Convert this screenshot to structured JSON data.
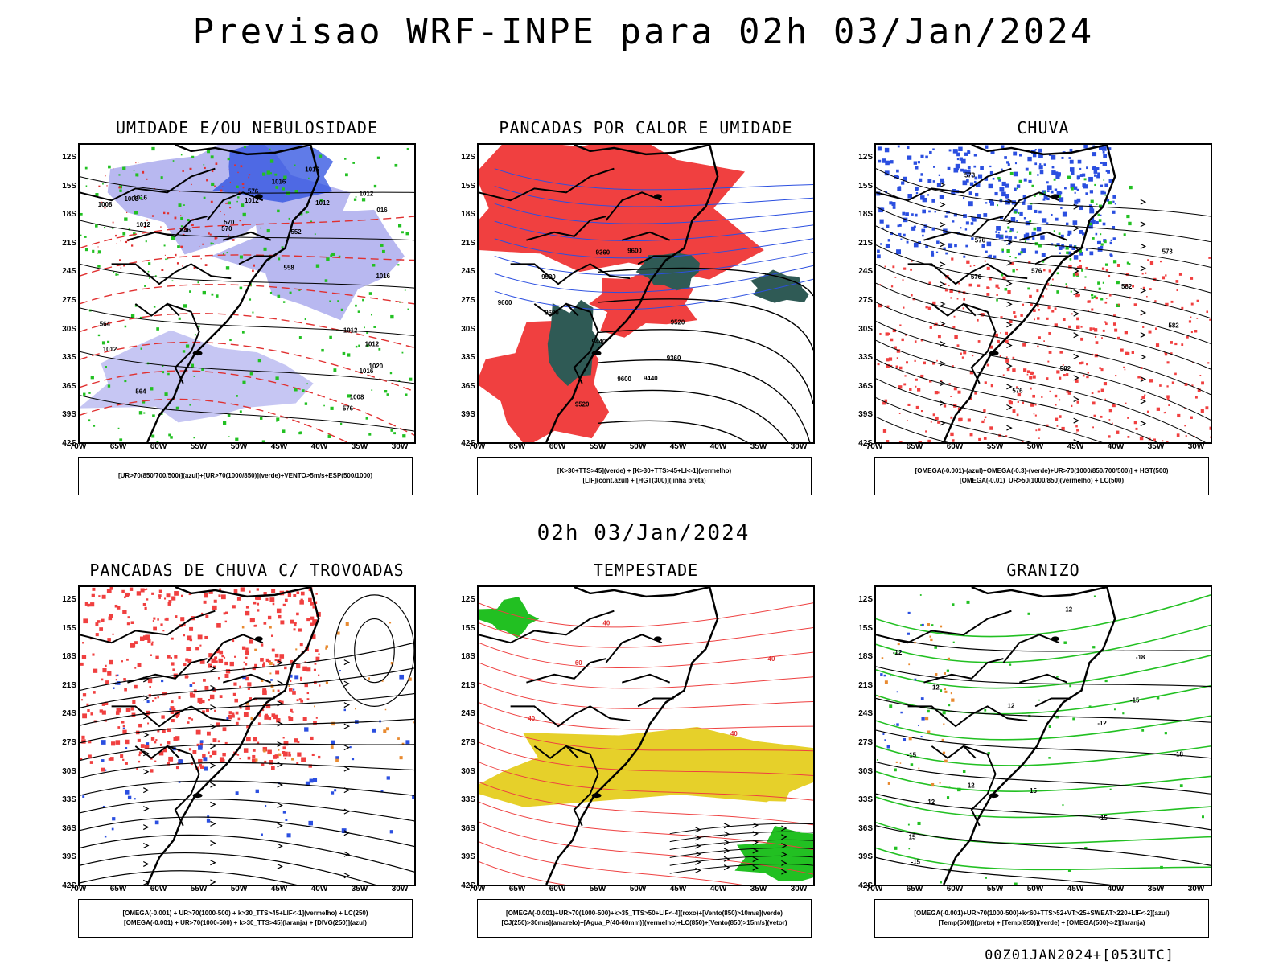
{
  "title": "Previsao WRF-INPE  para 02h 03/Jan/2024",
  "mid_title": "02h 03/Jan/2024",
  "footer": "00Z01JAN2024+[053UTC]",
  "axes": {
    "lat_labels": [
      "12S",
      "15S",
      "18S",
      "21S",
      "24S",
      "27S",
      "30S",
      "33S",
      "36S",
      "39S",
      "42S"
    ],
    "lon_labels": [
      "70W",
      "65W",
      "60W",
      "55W",
      "50W",
      "45W",
      "40W",
      "35W",
      "30W"
    ]
  },
  "colors": {
    "red_field": "#f04040",
    "blue_field": "#2b4fe0",
    "lavender_field": "#b8b8f0",
    "green_contour": "#22c022",
    "dark_teal_field": "#2f5a55",
    "yellow_field": "#e6d02a",
    "orange_field": "#e88a30"
  },
  "panels": [
    {
      "title": "UMIDADE E/OU NEBULOSIDADE",
      "legend": [
        "[UR>70(850/700/500)](azul)+[UR>70(1000/850)](verde)+VENTO>5m/s+ESP(500/1000)"
      ],
      "contour_labels": [
        "1012",
        "1012",
        "1008",
        "1008",
        "1012",
        "1008",
        "1012",
        "1012",
        "1016",
        "1012",
        "1012",
        "1016",
        "1016",
        "1020",
        "1016",
        "1016",
        "016",
        "576",
        "576",
        "570",
        "564",
        "558",
        "552",
        "546",
        "570",
        "564"
      ]
    },
    {
      "title": "PANCADAS POR CALOR E UMIDADE",
      "legend": [
        "[K>30+TTS>45](verde) + [K>30+TTS>45+LI<-1](vermelho)",
        "[LIF](cont.azul) + [HGT(300)](linha preta)"
      ],
      "contour_labels": [
        "9600",
        "9600",
        "9600",
        "9520",
        "9520",
        "9440",
        "9440",
        "9360",
        "9360",
        "9520",
        "9600"
      ]
    },
    {
      "title": "CHUVA",
      "legend": [
        "[OMEGA(-0.001)-(azul)+OMEGA(-0.3)-(verde)+UR>70(1000/850/700/500)] + HGT(500)",
        "[OMEGA(-0.01)_UR>50(1000/850)(vermelho) + LC(500)"
      ],
      "contour_labels": [
        "582",
        "582",
        "576",
        "576",
        "576",
        "573",
        "576",
        "573",
        "582"
      ]
    },
    {
      "title": "PANCADAS DE CHUVA C/ TROVOADAS",
      "legend": [
        "[OMEGA(-0.001) + UR>70(1000-500) + k>30_TTS>45+LIF<-1](vermelho) + LC(250)",
        "[OMEGA(-0.001) + UR>70(1000-500) + k>30_TTS>45](laranja) + [DIVG(250)](azul)"
      ],
      "contour_labels": []
    },
    {
      "title": "TEMPESTADE",
      "legend": [
        "[OMEGA(-0.001)+UR>70(1000-500)+k>35_TTS>50+LIF<-4](roxo)+[Vento(850)>10m/s](verde)",
        "[CJ(250)>30m/s](amarelo)+[Agua_P(40-60mm)](vermelho)+LC(850)+[Vento(850)>15m/s](vetor)"
      ],
      "contour_labels": [
        "40",
        "40",
        "40",
        "40",
        "60"
      ]
    },
    {
      "title": "GRANIZO",
      "legend": [
        "[OMEGA(-0.001)+UR>70(1000-500)+k<60+TTS>52+VT>25+SWEAT>220+LIF<-2](azul)",
        "[Temp(500)](preto) + [Temp(850)](verde) + [OMEGA(500)<-2](laranja)"
      ],
      "contour_labels": [
        "-12",
        "-12",
        "-12",
        "-12",
        "-15",
        "-15",
        "-15",
        "-18",
        "-18",
        "-15",
        "12",
        "12",
        "12",
        "15",
        "15"
      ]
    }
  ]
}
